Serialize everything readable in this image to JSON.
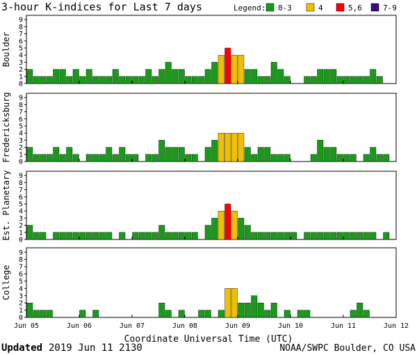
{
  "chart_data": {
    "type": "bar",
    "title": "3-hour K-indices for Last 7 days",
    "legend": {
      "label": "Legend:",
      "placement": "top-right",
      "entries": [
        {
          "label": "0-3",
          "color": "#1a9a1a"
        },
        {
          "label": "4",
          "color": "#f0c000"
        },
        {
          "label": "5,6",
          "color": "#ff0000"
        },
        {
          "label": "7-9",
          "color": "#3a0a8a"
        }
      ]
    },
    "ylim": [
      0,
      9
    ],
    "yticks": [
      "0",
      "1",
      "2",
      "3",
      "4",
      "5",
      "6",
      "7",
      "8",
      "9"
    ],
    "xticks": [
      "Jun 05",
      "Jun 06",
      "Jun 07",
      "Jun 08",
      "Jun 09",
      "Jun 10",
      "Jun 11",
      "Jun 12"
    ],
    "xlabel": "Coordinate Universal Time (UTC)",
    "bins_per_day": 8,
    "panels": [
      {
        "name": "Boulder",
        "values": [
          2,
          1,
          1,
          1,
          2,
          2,
          1,
          2,
          1,
          2,
          1,
          1,
          1,
          2,
          1,
          1,
          1,
          1,
          2,
          1,
          2,
          3,
          2,
          2,
          1,
          1,
          1,
          2,
          3,
          4,
          5,
          4,
          4,
          2,
          2,
          1,
          1,
          3,
          2,
          1,
          0,
          0,
          1,
          1,
          2,
          2,
          2,
          1,
          1,
          1,
          1,
          1,
          2,
          1,
          0
        ]
      },
      {
        "name": "Fredericksburg",
        "values": [
          2,
          1,
          1,
          1,
          2,
          1,
          2,
          1,
          0,
          1,
          1,
          1,
          2,
          1,
          2,
          1,
          1,
          0,
          1,
          1,
          3,
          2,
          2,
          2,
          1,
          1,
          0,
          2,
          3,
          4,
          4,
          4,
          4,
          2,
          1,
          2,
          2,
          1,
          1,
          1,
          0,
          0,
          0,
          1,
          3,
          2,
          2,
          1,
          1,
          1,
          0,
          1,
          2,
          1,
          1,
          0
        ]
      },
      {
        "name": "Est. Planetary",
        "values": [
          2,
          1,
          1,
          0,
          1,
          1,
          1,
          1,
          1,
          1,
          1,
          1,
          1,
          0,
          1,
          0,
          1,
          1,
          1,
          1,
          2,
          1,
          1,
          1,
          1,
          1,
          0,
          2,
          3,
          4,
          5,
          4,
          3,
          2,
          1,
          1,
          1,
          1,
          1,
          1,
          1,
          0,
          1,
          1,
          1,
          1,
          1,
          1,
          1,
          1,
          1,
          1,
          1,
          0,
          1
        ]
      },
      {
        "name": "College",
        "values": [
          2,
          1,
          1,
          1,
          0,
          0,
          0,
          0,
          1,
          0,
          1,
          0,
          0,
          0,
          0,
          0,
          0,
          0,
          0,
          0,
          2,
          1,
          0,
          1,
          0,
          0,
          1,
          1,
          0,
          1,
          4,
          4,
          2,
          2,
          3,
          2,
          1,
          2,
          0,
          1,
          0,
          1,
          1,
          0,
          0,
          0,
          0,
          0,
          0,
          1,
          2,
          1,
          0,
          0,
          0,
          0
        ]
      }
    ]
  },
  "footer": {
    "updated_label": "Updated",
    "updated_value": "2019 Jun 11 2130",
    "source": "NOAA/SWPC Boulder, CO USA"
  }
}
